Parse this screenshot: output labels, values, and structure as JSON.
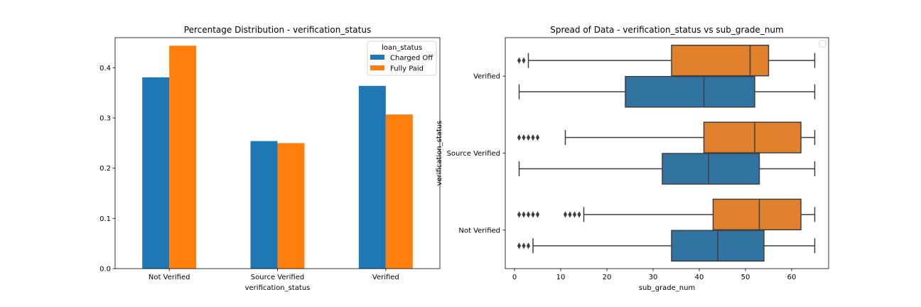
{
  "colors": {
    "charged_off": "#1f77b4",
    "fully_paid": "#ff7f0e",
    "box_blue": "#3274a1",
    "box_orange": "#e1812c",
    "box_line": "#3f3f3f"
  },
  "chart_data": [
    {
      "type": "bar",
      "title": "Percentage Distribution - verification_status",
      "xlabel": "verification_status",
      "ylabel": "",
      "categories": [
        "Not Verified",
        "Source Verified",
        "Verified"
      ],
      "series": [
        {
          "name": "Charged Off",
          "values": [
            0.381,
            0.254,
            0.364
          ]
        },
        {
          "name": "Fully Paid",
          "values": [
            0.444,
            0.25,
            0.307
          ]
        }
      ],
      "ylim": [
        0,
        0.46
      ],
      "yticks": [
        0.0,
        0.1,
        0.2,
        0.3,
        0.4
      ],
      "ytick_labels": [
        "0.0",
        "0.1",
        "0.2",
        "0.3",
        "0.4"
      ],
      "legend": {
        "title": "loan_status",
        "placement": "top-right"
      },
      "grid": false
    },
    {
      "type": "box",
      "title": "Spread of Data - verification_status vs sub_grade_num",
      "xlabel": "sub_grade_num",
      "ylabel": "verification_status",
      "categories": [
        "Verified",
        "Source Verified",
        "Not Verified"
      ],
      "xlim": [
        -2,
        68
      ],
      "xticks": [
        0,
        10,
        20,
        30,
        40,
        50,
        60
      ],
      "xtick_labels": [
        "0",
        "10",
        "20",
        "30",
        "40",
        "50",
        "60"
      ],
      "series": [
        {
          "key": "fully_paid",
          "boxes": [
            {
              "category": "Verified",
              "q1": 34,
              "median": 51,
              "q3": 55,
              "whisker_low": 3,
              "whisker_high": 65,
              "outliers": [
                1,
                2
              ]
            },
            {
              "category": "Source Verified",
              "q1": 41,
              "median": 52,
              "q3": 62,
              "whisker_low": 11,
              "whisker_high": 65,
              "outliers": [
                1,
                2,
                3,
                4,
                5
              ]
            },
            {
              "category": "Not Verified",
              "q1": 43,
              "median": 53,
              "q3": 62,
              "whisker_low": 15,
              "whisker_high": 65,
              "outliers": [
                1,
                2,
                3,
                4,
                5,
                11,
                12,
                13,
                14
              ]
            }
          ]
        },
        {
          "key": "charged_off",
          "boxes": [
            {
              "category": "Verified",
              "q1": 24,
              "median": 41,
              "q3": 52,
              "whisker_low": 1,
              "whisker_high": 65,
              "outliers": []
            },
            {
              "category": "Source Verified",
              "q1": 32,
              "median": 42,
              "q3": 53,
              "whisker_low": 1,
              "whisker_high": 65,
              "outliers": []
            },
            {
              "category": "Not Verified",
              "q1": 34,
              "median": 44,
              "q3": 54,
              "whisker_low": 4,
              "whisker_high": 65,
              "outliers": [
                1,
                2,
                3
              ]
            }
          ]
        }
      ],
      "legend": {
        "placement": "top-right",
        "entries": []
      },
      "grid": false
    }
  ]
}
